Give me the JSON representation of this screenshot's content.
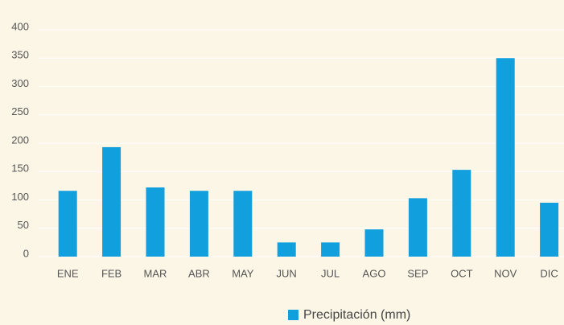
{
  "chart_data": {
    "type": "bar",
    "categories": [
      "ENE",
      "FEB",
      "MAR",
      "ABR",
      "MAY",
      "JUN",
      "JUL",
      "AGO",
      "SEP",
      "OCT",
      "NOV",
      "DIC"
    ],
    "series": [
      {
        "name": "Precipitación (mm)",
        "color": "#119fdd",
        "values": [
          116,
          193,
          122,
          116,
          116,
          25,
          25,
          48,
          103,
          153,
          350,
          95
        ]
      }
    ],
    "ylim": [
      0,
      400
    ],
    "yticks": [
      0,
      50,
      100,
      150,
      200,
      250,
      300,
      350,
      400
    ],
    "grid": true
  }
}
